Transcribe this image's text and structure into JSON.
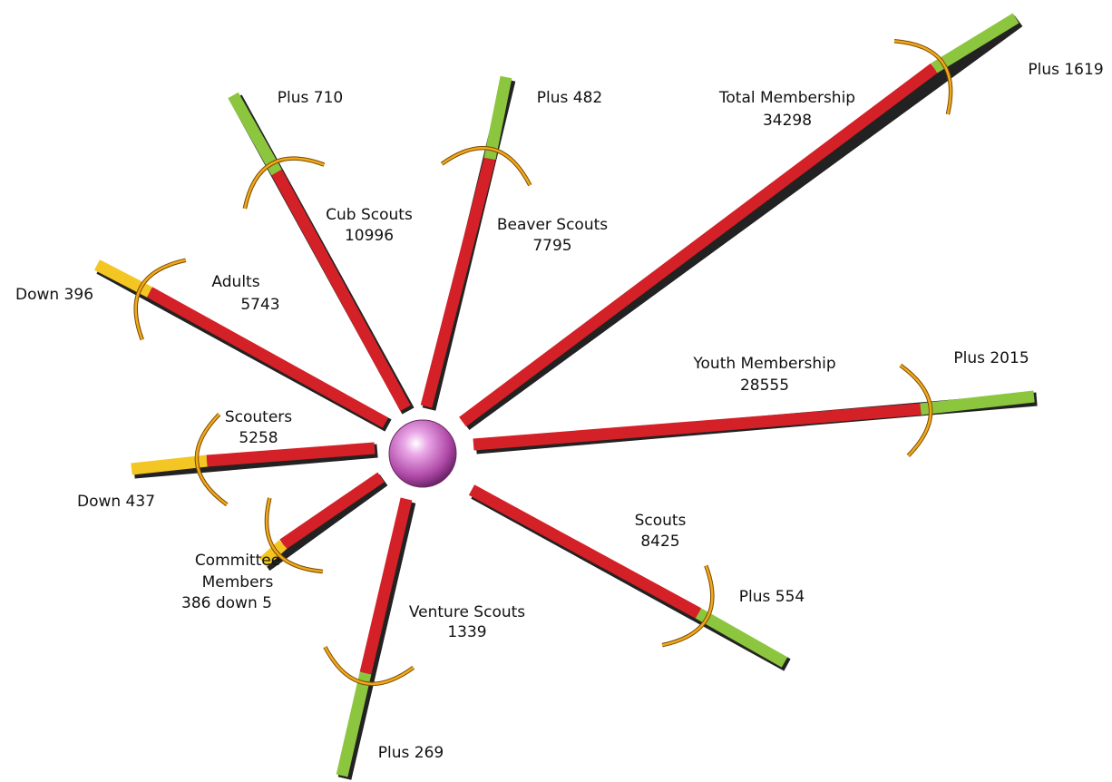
{
  "items": [
    {
      "label": [
        "Total Membership"
      ],
      "value": "34298",
      "change": "Plus 1619"
    },
    {
      "label": [
        "Youth Membership"
      ],
      "value": "28555",
      "change": "Plus 2015"
    },
    {
      "label": [
        "Scouts"
      ],
      "value": "8425",
      "change": "Plus 554"
    },
    {
      "label": [
        "Venture Scouts"
      ],
      "value": "1339",
      "change": "Plus 269"
    },
    {
      "label": [
        "Committee",
        "Members"
      ],
      "value": "386 down 5"
    },
    {
      "label": [
        "Scouters"
      ],
      "value": "5258",
      "change": "Down 437"
    },
    {
      "label": [
        "Adults"
      ],
      "value": "5743",
      "change": "Down 396"
    },
    {
      "label": [
        "Cub Scouts"
      ],
      "value": "10996",
      "change": "Plus 710"
    },
    {
      "label": [
        "Beaver Scouts"
      ],
      "value": "7795",
      "change": "Plus 482"
    }
  ]
}
